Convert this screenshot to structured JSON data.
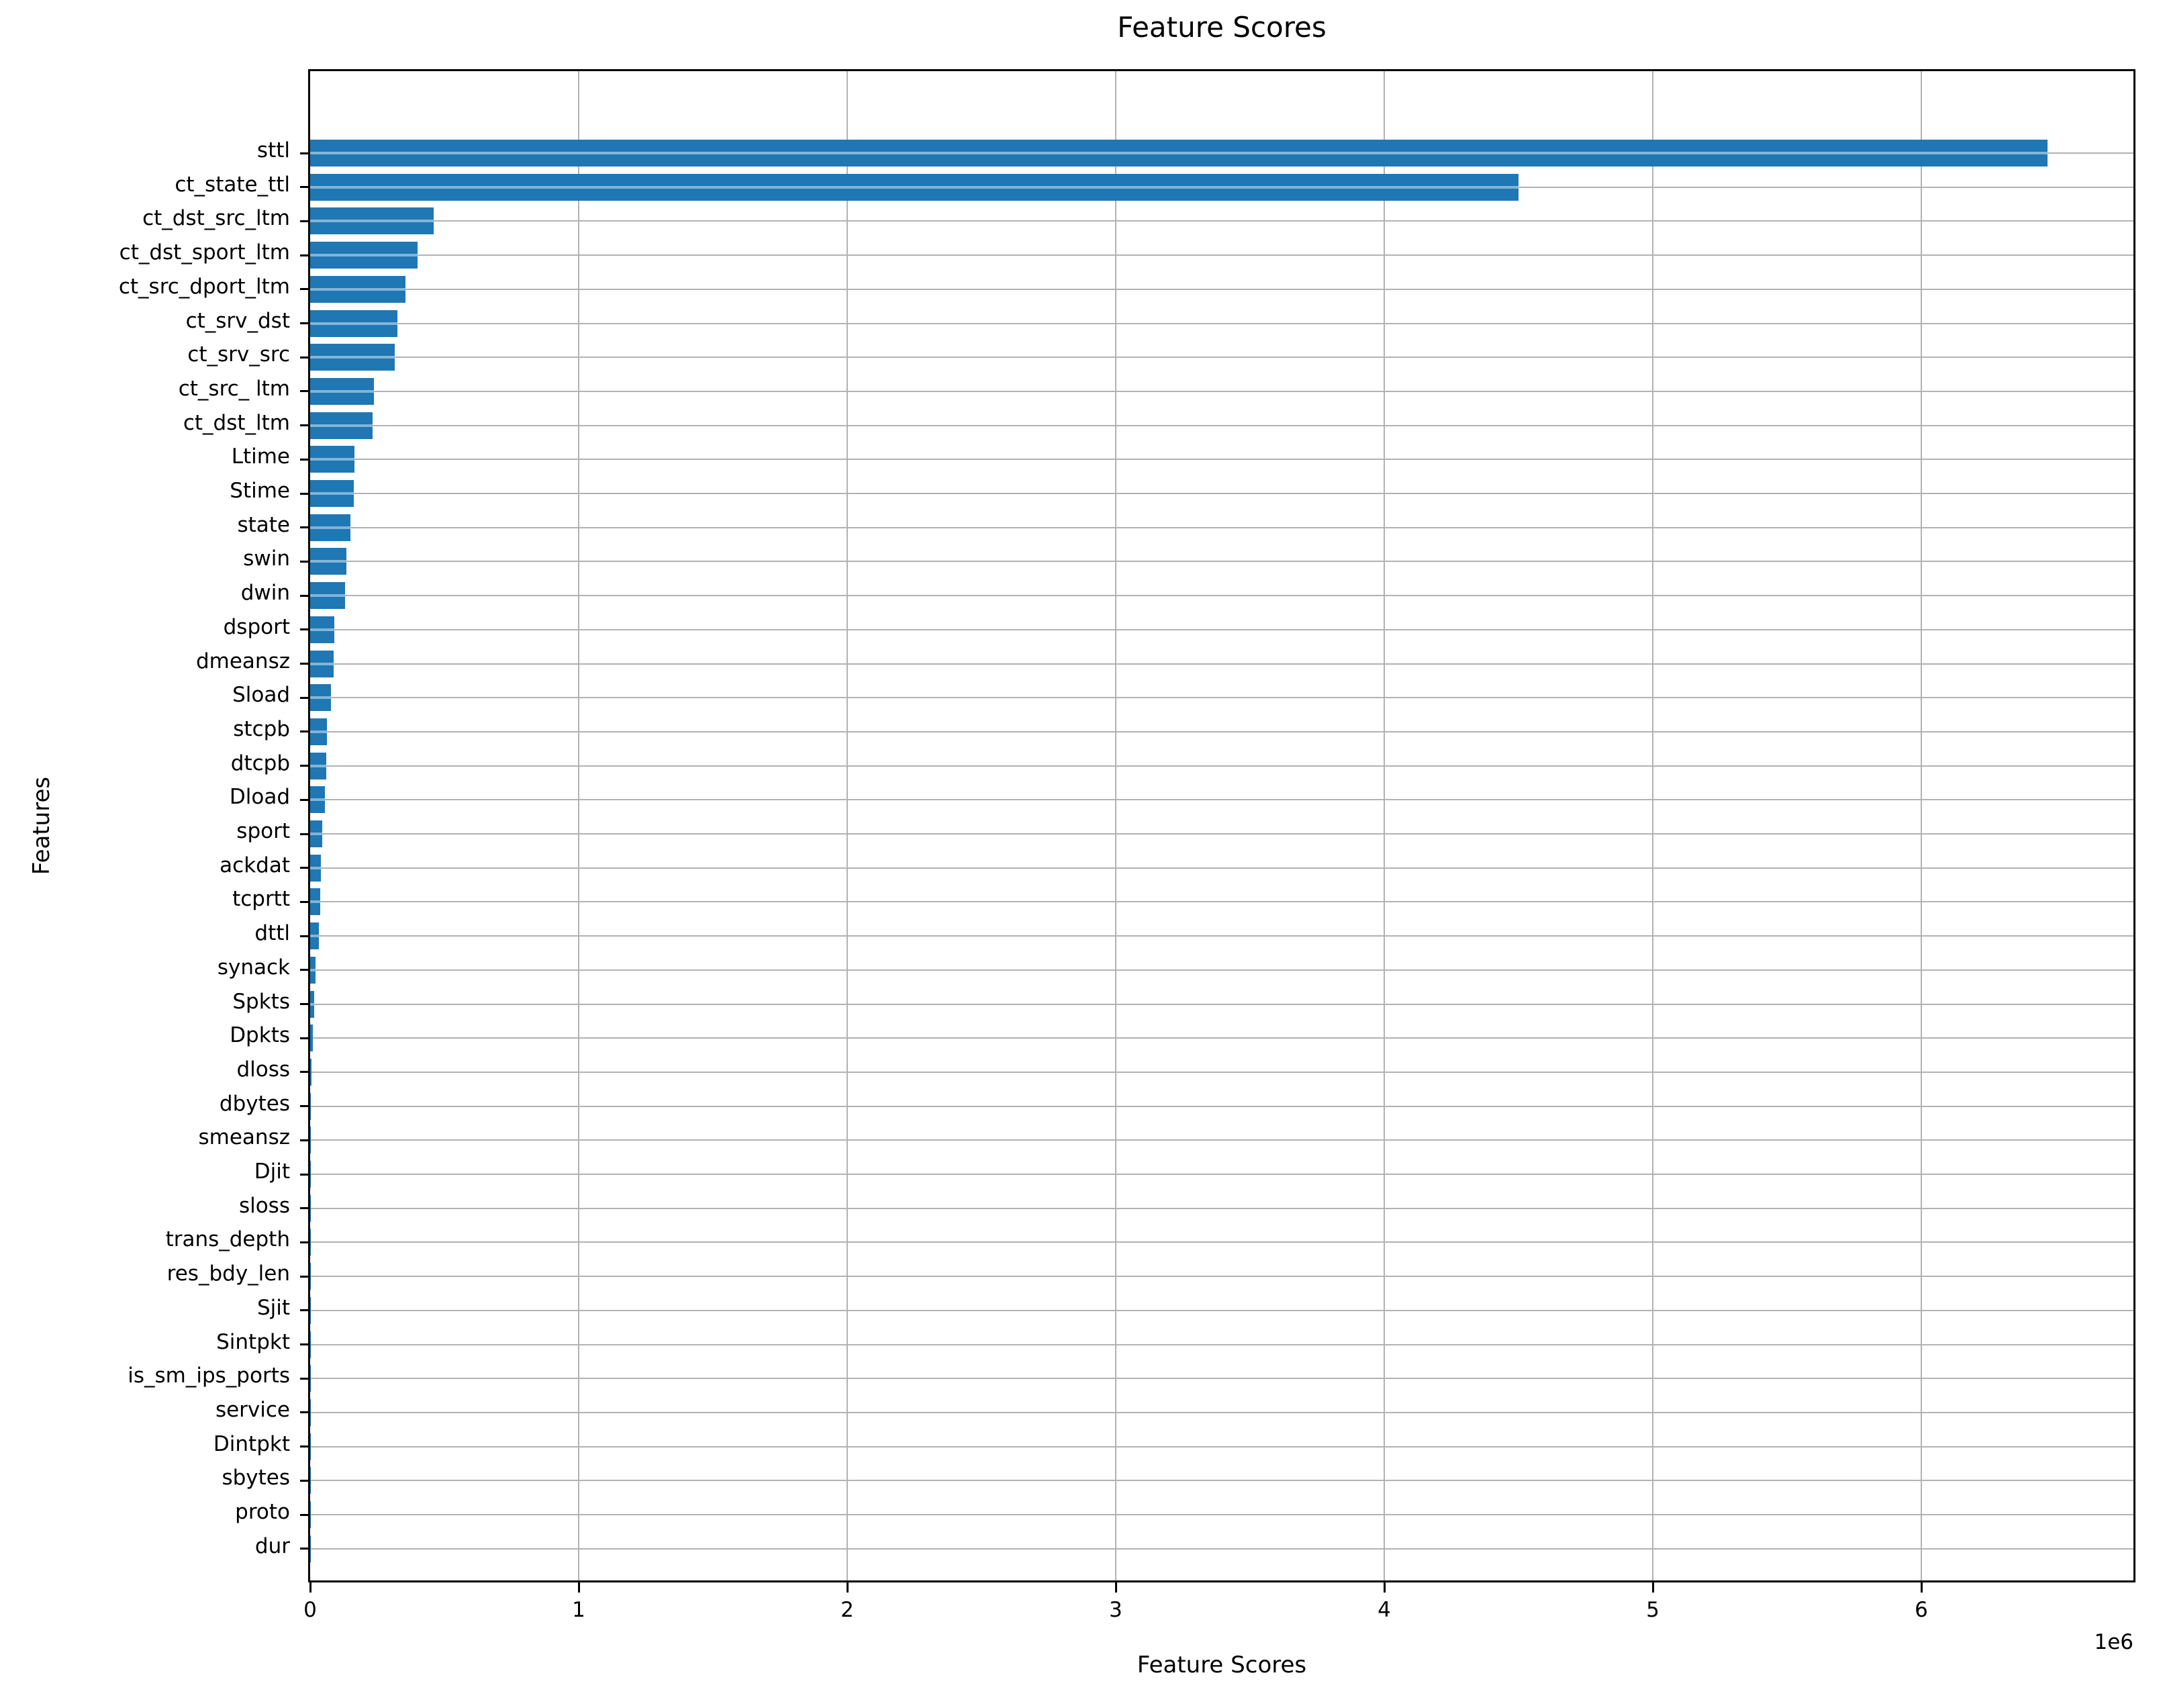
{
  "chart_data": {
    "type": "bar",
    "orientation": "horizontal",
    "title": "Feature Scores",
    "xlabel": "Feature Scores",
    "ylabel": "Features",
    "x_multiplier_label": "1e6",
    "xlim": [
      0,
      6790000
    ],
    "x_ticks": [
      0,
      1000000,
      2000000,
      3000000,
      4000000,
      5000000,
      6000000
    ],
    "x_tick_labels": [
      "0",
      "1",
      "2",
      "3",
      "4",
      "5",
      "6"
    ],
    "grid": true,
    "legend": false,
    "bar_color": "#1f77b4",
    "grid_color": "#b2b2b2",
    "categories": [
      "sttl",
      "ct_state_ttl",
      "ct_dst_src_ltm",
      "ct_dst_sport_ltm",
      "ct_src_dport_ltm",
      "ct_srv_dst",
      "ct_srv_src",
      "ct_src_ ltm",
      "ct_dst_ltm",
      "Ltime",
      "Stime",
      "state",
      "swin",
      "dwin",
      "dsport",
      "dmeansz",
      "Sload",
      "stcpb",
      "dtcpb",
      "Dload",
      "sport",
      "ackdat",
      "tcprtt",
      "dttl",
      "synack",
      "Spkts",
      "Dpkts",
      "dloss",
      "dbytes",
      "smeansz",
      "Djit",
      "sloss",
      "trans_depth",
      "res_bdy_len",
      "Sjit",
      "Sintpkt",
      "is_sm_ips_ports",
      "service",
      "Dintpkt",
      "sbytes",
      "proto",
      "dur"
    ],
    "values": [
      6470000,
      4500000,
      460000,
      400000,
      355000,
      325000,
      315000,
      237000,
      232000,
      165000,
      162000,
      150000,
      135000,
      130000,
      90000,
      87000,
      77000,
      62000,
      60000,
      55000,
      45000,
      39000,
      37000,
      33000,
      21000,
      16000,
      10000,
      4000,
      2500,
      2000,
      1500,
      1200,
      1000,
      800,
      600,
      500,
      400,
      300,
      200,
      150,
      100,
      50
    ]
  }
}
